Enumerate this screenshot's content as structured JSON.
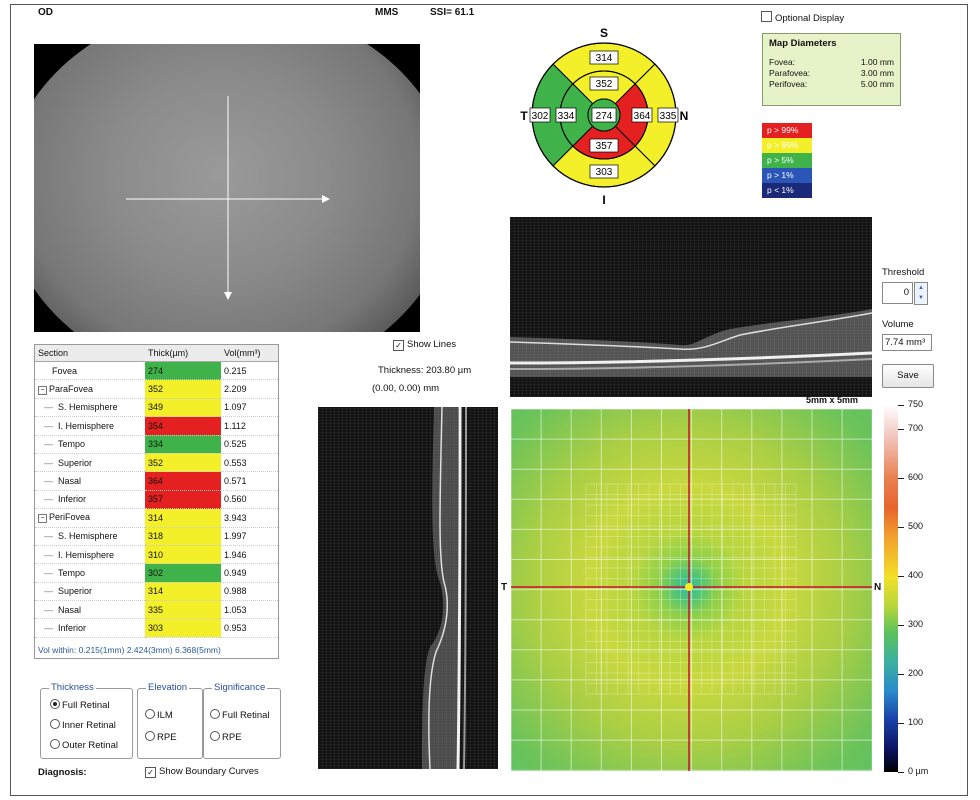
{
  "header": {
    "eye": "OD",
    "mode": "MMS",
    "ssi": "SSI= 61.1"
  },
  "sectors": {
    "directions": {
      "s": "S",
      "t": "T",
      "n": "N",
      "i": "I"
    },
    "outer": {
      "superior": "314",
      "temporal": "302",
      "nasal": "335",
      "inferior": "303"
    },
    "inner": {
      "superior": "352",
      "temporal": "334",
      "nasal": "364",
      "inferior": "357"
    },
    "center": "274",
    "colors": {
      "red": "#e52020",
      "yellow": "#f3f02a",
      "green": "#3fb34a"
    }
  },
  "optional_display": {
    "label": "Optional Display",
    "checked": false
  },
  "map_diameters": {
    "title": "Map Diameters",
    "rows": [
      {
        "name": "Fovea:",
        "value": "1.00 mm"
      },
      {
        "name": "Parafovea:",
        "value": "3.00 mm"
      },
      {
        "name": "Perifovea:",
        "value": "5.00 mm"
      }
    ]
  },
  "legend": [
    {
      "label": "p > 99%",
      "color": "#e52020"
    },
    {
      "label": "p > 95%",
      "color": "#f3f02a"
    },
    {
      "label": "p > 5%",
      "color": "#3fb34a"
    },
    {
      "label": "p > 1%",
      "color": "#2b56b8"
    },
    {
      "label": "p < 1%",
      "color": "#1a2a78"
    }
  ],
  "threshold": {
    "label": "Threshold",
    "value": "0"
  },
  "volume": {
    "label": "Volume",
    "value": "7.74 mm³"
  },
  "save_label": "Save",
  "show_lines": {
    "label": "Show Lines",
    "checked": true
  },
  "thickness_readout": {
    "thickness": "Thickness: 203.80 µm",
    "coords": "(0.00, 0.00) mm"
  },
  "map_size": "5mm x 5mm",
  "map_axes": {
    "t": "T",
    "n": "N"
  },
  "colorbar": {
    "ticks": [
      "750",
      "700",
      "600",
      "500",
      "400",
      "300",
      "200",
      "100",
      "0 µm"
    ]
  },
  "table": {
    "headers": [
      "Section",
      "Thick(µm)",
      "Vol(mm³)"
    ],
    "rows": [
      {
        "section": "Fovea",
        "level": 0,
        "expander": "",
        "thick": "274",
        "vol": "0.215",
        "color": "green"
      },
      {
        "section": "ParaFovea",
        "level": 0,
        "expander": "−",
        "thick": "352",
        "vol": "2.209",
        "color": "yellow"
      },
      {
        "section": "S. Hemisphere",
        "level": 1,
        "expander": "",
        "thick": "349",
        "vol": "1.097",
        "color": "yellow"
      },
      {
        "section": "I. Hemisphere",
        "level": 1,
        "expander": "",
        "thick": "354",
        "vol": "1.112",
        "color": "red"
      },
      {
        "section": "Tempo",
        "level": 1,
        "expander": "",
        "thick": "334",
        "vol": "0.525",
        "color": "green"
      },
      {
        "section": "Superior",
        "level": 1,
        "expander": "",
        "thick": "352",
        "vol": "0.553",
        "color": "yellow"
      },
      {
        "section": "Nasal",
        "level": 1,
        "expander": "",
        "thick": "364",
        "vol": "0.571",
        "color": "red"
      },
      {
        "section": "Inferior",
        "level": 1,
        "expander": "",
        "thick": "357",
        "vol": "0.560",
        "color": "red"
      },
      {
        "section": "PeriFovea",
        "level": 0,
        "expander": "−",
        "thick": "314",
        "vol": "3.943",
        "color": "yellow"
      },
      {
        "section": "S. Hemisphere",
        "level": 1,
        "expander": "",
        "thick": "318",
        "vol": "1.997",
        "color": "yellow"
      },
      {
        "section": "I. Hemisphere",
        "level": 1,
        "expander": "",
        "thick": "310",
        "vol": "1.946",
        "color": "yellow"
      },
      {
        "section": "Tempo",
        "level": 1,
        "expander": "",
        "thick": "302",
        "vol": "0.949",
        "color": "green"
      },
      {
        "section": "Superior",
        "level": 1,
        "expander": "",
        "thick": "314",
        "vol": "0.988",
        "color": "yellow"
      },
      {
        "section": "Nasal",
        "level": 1,
        "expander": "",
        "thick": "335",
        "vol": "1.053",
        "color": "yellow"
      },
      {
        "section": "Inferior",
        "level": 1,
        "expander": "",
        "thick": "303",
        "vol": "0.953",
        "color": "yellow"
      }
    ],
    "vol_within": "Vol within: 0.215(1mm) 2.424(3mm) 6.368(5mm)"
  },
  "thickness_group": {
    "title": "Thickness",
    "options": [
      "Full Retinal",
      "Inner Retinal",
      "Outer Retinal"
    ],
    "selected": 0
  },
  "elevation_group": {
    "title": "Elevation",
    "options": [
      "ILM",
      "RPE"
    ]
  },
  "significance_group": {
    "title": "Significance",
    "options": [
      "Full Retinal",
      "RPE"
    ]
  },
  "diagnosis_label": "Diagnosis:",
  "show_boundary": {
    "label": "Show Boundary Curves",
    "checked": true
  }
}
